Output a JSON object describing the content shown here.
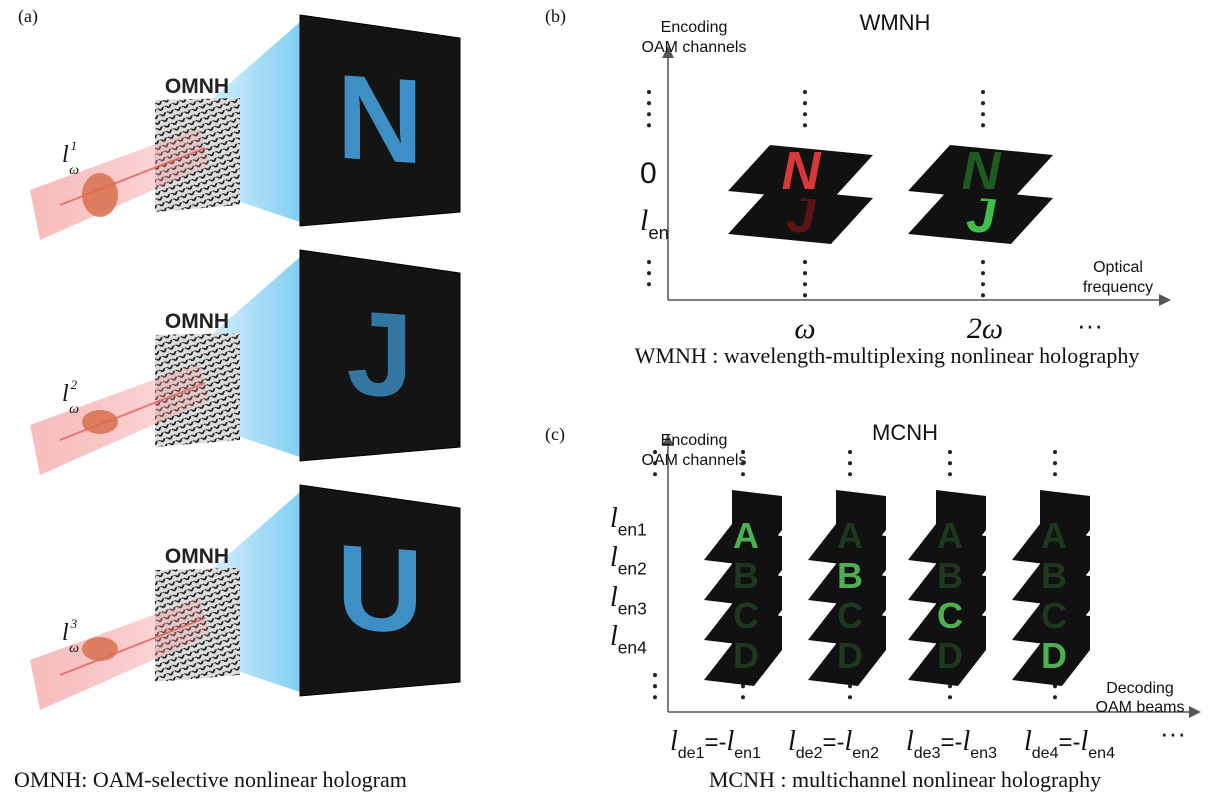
{
  "panel_a": {
    "label": "(a)",
    "rows": [
      {
        "hologram": "OMNH",
        "beam": {
          "main": "l",
          "sub": "ω",
          "sup": "1"
        },
        "image": "N"
      },
      {
        "hologram": "OMNH",
        "beam": {
          "main": "l",
          "sub": "ω",
          "sup": "2"
        },
        "image": "J"
      },
      {
        "hologram": "OMNH",
        "beam": {
          "main": "l",
          "sub": "ω",
          "sup": "3"
        },
        "image": "U"
      }
    ],
    "caption": "OMNH: OAM-selective nonlinear hologram"
  },
  "panel_b": {
    "label": "(b)",
    "title": "WMNH",
    "y_axis_title": [
      "Encoding",
      "OAM channels"
    ],
    "y_labels": [
      {
        "main": "0"
      },
      {
        "main": "l",
        "sub": "en"
      }
    ],
    "x_axis_title": [
      "Optical",
      "frequency"
    ],
    "x_labels": [
      "ω",
      "2ω",
      "···"
    ],
    "planes": [
      {
        "top": "N",
        "bottom": "J"
      },
      {
        "top": "N",
        "bottom": "J"
      }
    ],
    "caption": "WMNH : wavelength-multiplexing nonlinear holography"
  },
  "panel_c": {
    "label": "(c)",
    "title": "MCNH",
    "y_axis_title": [
      "Encoding",
      "OAM channels"
    ],
    "y_labels": [
      {
        "main": "l",
        "sub": "en1"
      },
      {
        "main": "l",
        "sub": "en2"
      },
      {
        "main": "l",
        "sub": "en3"
      },
      {
        "main": "l",
        "sub": "en4"
      }
    ],
    "x_axis_title": [
      "Decoding",
      "OAM beams"
    ],
    "letters": [
      "A",
      "B",
      "C",
      "D"
    ],
    "x_labels": [
      {
        "l1": "l",
        "s1": "de1",
        "eq": "=-",
        "l2": "l",
        "s2": "en1"
      },
      {
        "l1": "l",
        "s1": "de2",
        "eq": "=-",
        "l2": "l",
        "s2": "en2"
      },
      {
        "l1": "l",
        "s1": "de3",
        "eq": "=-",
        "l2": "l",
        "s2": "en3"
      },
      {
        "l1": "l",
        "s1": "de4",
        "eq": "=-",
        "l2": "l",
        "s2": "en4"
      }
    ],
    "x_more": "···",
    "caption": "MCNH : multichannel nonlinear holography"
  }
}
